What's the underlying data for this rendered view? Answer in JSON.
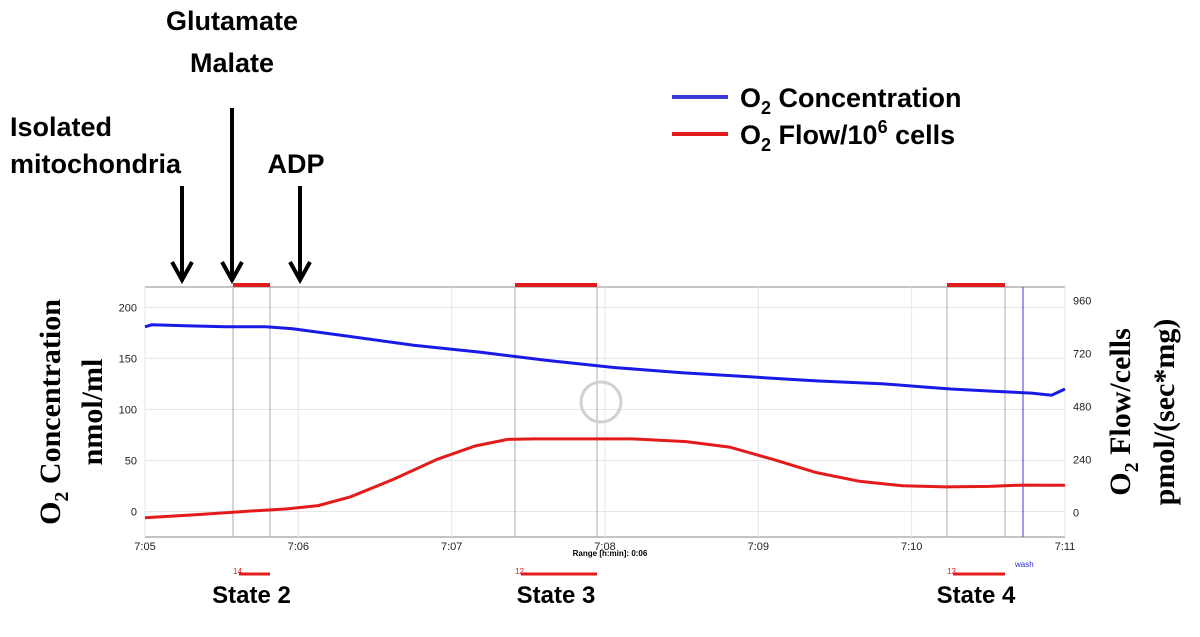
{
  "chart_data": {
    "type": "line",
    "x_range": [
      "7:05",
      "7:11"
    ],
    "x_ticks": [
      "7:05",
      "7:06",
      "7:07",
      "7:08",
      "7:09",
      "7:10",
      "7:11"
    ],
    "range_label": "Range [h:min]: 0:06",
    "y_left": {
      "label_main": "O",
      "label_sub": "2",
      "label_rest": " Concentration",
      "label_line2": "nmol/ml",
      "range": [
        -25,
        220
      ],
      "ticks": [
        200,
        150,
        100,
        50,
        0
      ]
    },
    "y_right": {
      "label_main": "O",
      "label_sub": "2",
      "label_rest": " Flow/cells",
      "label_line2": "pmol/(sec*mg)",
      "range": [
        -112,
        1020
      ],
      "ticks": [
        960,
        720,
        480,
        240,
        0
      ]
    },
    "legend": [
      {
        "name_main": "O",
        "name_sub": "2",
        "name_rest": " Concentration",
        "color": "#2b2bd9"
      },
      {
        "name_main": "O",
        "name_sub": "2",
        "name_rest": " Flow/10",
        "name_sup": "6",
        "name_tail": " cells",
        "color": "#e31b1b"
      }
    ],
    "series": [
      {
        "axis": "left",
        "color": "#1a1ae6",
        "points": [
          [
            0.0,
            181
          ],
          [
            0.05,
            183
          ],
          [
            0.3,
            182
          ],
          [
            0.6,
            181
          ],
          [
            0.9,
            181
          ],
          [
            1.1,
            179
          ],
          [
            1.5,
            172
          ],
          [
            2.0,
            163
          ],
          [
            2.5,
            156
          ],
          [
            3.0,
            148
          ],
          [
            3.5,
            141
          ],
          [
            4.0,
            136
          ],
          [
            4.5,
            132
          ],
          [
            5.0,
            128
          ],
          [
            5.5,
            125
          ],
          [
            5.8,
            122
          ],
          [
            6.0,
            120
          ],
          [
            6.3,
            118
          ],
          [
            6.6,
            116
          ],
          [
            6.75,
            114
          ],
          [
            6.8,
            117
          ],
          [
            6.85,
            120
          ]
        ]
      },
      {
        "axis": "right",
        "color": "#e31b1b",
        "points": [
          [
            0.0,
            -25
          ],
          [
            0.5,
            -10
          ],
          [
            1.0,
            6
          ],
          [
            1.3,
            15
          ],
          [
            1.6,
            30
          ],
          [
            1.9,
            70
          ],
          [
            2.3,
            150
          ],
          [
            2.7,
            240
          ],
          [
            3.05,
            300
          ],
          [
            3.35,
            330
          ],
          [
            3.6,
            332
          ],
          [
            4.5,
            332
          ],
          [
            5.0,
            320
          ],
          [
            5.4,
            295
          ],
          [
            5.8,
            240
          ],
          [
            6.2,
            180
          ],
          [
            6.6,
            140
          ],
          [
            7.0,
            120
          ],
          [
            7.4,
            115
          ],
          [
            7.8,
            117
          ],
          [
            8.1,
            123
          ],
          [
            8.5,
            122
          ]
        ]
      }
    ],
    "markers": [
      {
        "label": "State 2",
        "range": [
          7.0983,
          7.1225
        ],
        "tag": "14"
      },
      {
        "label": "State 3",
        "range": [
          7.1283,
          7.1333
        ],
        "tag": "12"
      },
      {
        "label": "State 4",
        "range": [
          7.1717,
          7.1767
        ],
        "tag": "13"
      }
    ],
    "wash_label": "wash",
    "annotations": {
      "isolated_mito_line1": "Isolated",
      "isolated_mito_line2": "mitochondria",
      "glutamate": "Glutamate",
      "malate": "Malate",
      "adp": "ADP"
    }
  }
}
